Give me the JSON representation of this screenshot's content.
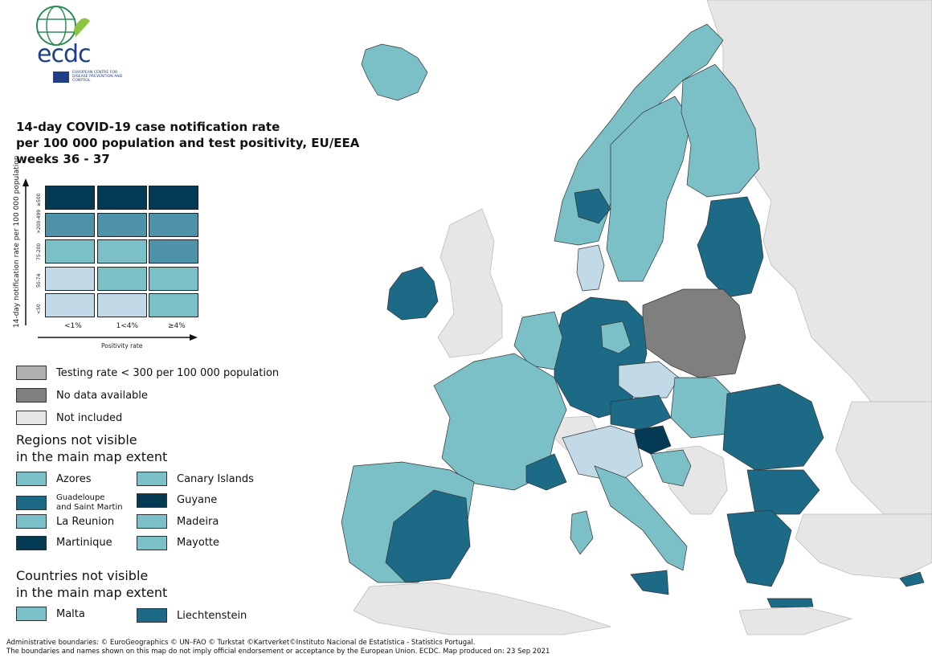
{
  "logo": {
    "wordmark": "ecdc",
    "subtitle": "EUROPEAN CENTRE FOR DISEASE PREVENTION AND CONTROL"
  },
  "title": {
    "line1": "14-day COVID-19 case notification rate",
    "line2": "per 100 000 population and test positivity, EU/EEA",
    "line3": "weeks 36 - 37"
  },
  "colors": {
    "c1": "#c2dae8",
    "c2": "#7bbfc7",
    "c3": "#4f93a8",
    "c4": "#1c6a86",
    "c5": "#053a54",
    "no_data": "#7f7f7f",
    "testing": "#b0b0b0",
    "not_included": "#e6e6e6",
    "sea": "#ffffff",
    "border": "#333333"
  },
  "matrix": {
    "y_axis_title": "14-day notification rate per 100 000 population",
    "x_axis_title": "Positivity rate",
    "row_labels": [
      "≥500",
      ">200-499",
      "75-200",
      "50-74",
      "<50"
    ],
    "col_labels": [
      "<1%",
      "1<4%",
      "≥4%"
    ],
    "cells": [
      [
        "c5",
        "c5",
        "c5"
      ],
      [
        "c3",
        "c3",
        "c3"
      ],
      [
        "c2",
        "c2",
        "c3"
      ],
      [
        "c1",
        "c2",
        "c2"
      ],
      [
        "c1",
        "c1",
        "c2"
      ]
    ]
  },
  "legend": {
    "testing": "Testing rate < 300 per 100 000 population",
    "no_data": "No data available",
    "not_included": "Not included"
  },
  "regions_title": {
    "line1": "Regions not visible",
    "line2": "in the main map extent"
  },
  "regions": [
    {
      "name": "Azores",
      "color": "c2"
    },
    {
      "name": "Canary Islands",
      "color": "c2"
    },
    {
      "name": "Guadeloupe\nand Saint Martin",
      "color": "c4"
    },
    {
      "name": "Guyane",
      "color": "c5"
    },
    {
      "name": "La Reunion",
      "color": "c2"
    },
    {
      "name": "Madeira",
      "color": "c2"
    },
    {
      "name": "Martinique",
      "color": "c5"
    },
    {
      "name": "Mayotte",
      "color": "c2"
    }
  ],
  "countries_title": {
    "line1": "Countries not visible",
    "line2": "in the main map extent"
  },
  "countries": [
    {
      "name": "Malta",
      "color": "c2"
    },
    {
      "name": "Liechtenstein",
      "color": "c4"
    }
  ],
  "footer": {
    "line1": "Administrative boundaries: © EuroGeographics © UN–FAO © Turkstat ©Kartverket©Instituto Nacional de Estatística - Statistics Portugal.",
    "line2": "The boundaries and names shown on this map do not imply official endorsement or acceptance by the European Union. ECDC. Map produced on: 23 Sep 2021"
  }
}
